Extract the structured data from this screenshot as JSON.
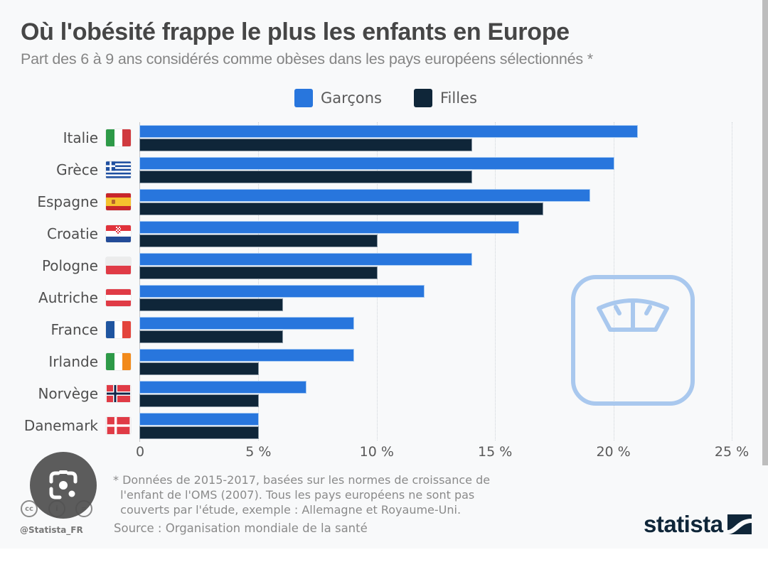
{
  "header": {
    "title": "Où l'obésité frappe le plus les enfants en Europe",
    "subtitle": "Part des 6 à 9 ans considérés comme obèses dans les pays européens sélectionnés *"
  },
  "chart_data": {
    "type": "bar",
    "orientation": "horizontal",
    "title": "Où l'obésité frappe le plus les enfants en Europe",
    "subtitle": "Part des 6 à 9 ans considérés comme obèses dans les pays européens sélectionnés *",
    "xlabel": "",
    "ylabel": "",
    "categories": [
      "Italie",
      "Grèce",
      "Espagne",
      "Croatie",
      "Pologne",
      "Autriche",
      "France",
      "Irlande",
      "Norvège",
      "Danemark"
    ],
    "series": [
      {
        "name": "Garçons",
        "color": "#2876dd",
        "values": [
          21,
          20,
          19,
          16,
          14,
          12,
          9,
          9,
          7,
          5
        ]
      },
      {
        "name": "Filles",
        "color": "#0f2639",
        "values": [
          14,
          14,
          17,
          10,
          10,
          6,
          6,
          5,
          5,
          5
        ]
      }
    ],
    "xlim": [
      0,
      25
    ],
    "xticks": [
      0,
      5,
      10,
      15,
      20,
      25
    ],
    "xtick_labels": [
      "0",
      "5 %",
      "10 %",
      "15 %",
      "20 %",
      "25 %"
    ],
    "grid": true,
    "legend_position": "top-center",
    "unit": "%"
  },
  "legend": [
    {
      "label": "Garçons",
      "color": "#2876dd"
    },
    {
      "label": "Filles",
      "color": "#0f2639"
    }
  ],
  "flags": [
    "italy-flag",
    "greece-flag",
    "spain-flag",
    "croatia-flag",
    "poland-flag",
    "austria-flag",
    "france-flag",
    "ireland-flag",
    "norway-flag",
    "denmark-flag"
  ],
  "footer": {
    "footnote": "* Données de 2015-2017, basées sur les normes de croissance de\n  l'enfant de l'OMS (2007). Tous les pays européens ne sont pas\n  couverts par l'étude, exemple : Allemagne et Royaume-Uni.",
    "source": "Source : Organisation mondiale de la santé",
    "handle": "@Statista_FR",
    "logo": "statista",
    "license_icons": [
      "cc",
      "by",
      "nd"
    ]
  },
  "overlay": {
    "lens_button_icon": "google-lens-icon"
  }
}
